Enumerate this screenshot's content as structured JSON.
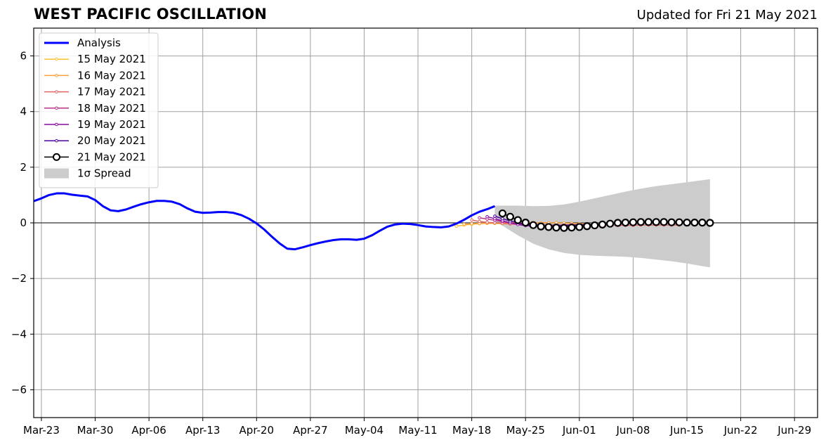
{
  "header": {
    "title": "WEST PACIFIC OSCILLATION",
    "updated": "Updated for Fri 21 May 2021"
  },
  "chart_data": {
    "type": "line",
    "title": "WEST PACIFIC OSCILLATION",
    "subtitle": "Updated for Fri 21 May 2021",
    "xlabel": "",
    "ylabel": "",
    "x_axis_start": "2021-03-22",
    "x_axis_end": "2021-07-02",
    "ylim": [
      -7,
      7
    ],
    "yticks": [
      -6,
      -4,
      -2,
      0,
      2,
      4,
      6
    ],
    "ytick_labels": [
      "−6",
      "−4",
      "−2",
      "0",
      "2",
      "4",
      "6"
    ],
    "xticks": [
      "2021-03-23",
      "2021-03-30",
      "2021-04-06",
      "2021-04-13",
      "2021-04-20",
      "2021-04-27",
      "2021-05-04",
      "2021-05-11",
      "2021-05-18",
      "2021-05-25",
      "2021-06-01",
      "2021-06-08",
      "2021-06-15",
      "2021-06-22",
      "2021-06-29"
    ],
    "xtick_labels": [
      "Mar-23",
      "Mar-30",
      "Apr-06",
      "Apr-13",
      "Apr-20",
      "Apr-27",
      "May-04",
      "May-11",
      "May-18",
      "May-25",
      "Jun-01",
      "Jun-08",
      "Jun-15",
      "Jun-22",
      "Jun-29"
    ],
    "grid": true,
    "legend_position": "top-left",
    "legend": [
      "Analysis",
      "15 May 2021",
      "16 May 2021",
      "17 May 2021",
      "18 May 2021",
      "19 May 2021",
      "20 May 2021",
      "21 May 2021",
      "1σ Spread"
    ],
    "series": [
      {
        "name": "Analysis",
        "color": "#0000ff",
        "kind": "analysis",
        "x": [
          "2021-03-22",
          "2021-03-23",
          "2021-03-24",
          "2021-03-25",
          "2021-03-26",
          "2021-03-27",
          "2021-03-28",
          "2021-03-29",
          "2021-03-30",
          "2021-03-31",
          "2021-04-01",
          "2021-04-02",
          "2021-04-03",
          "2021-04-04",
          "2021-04-05",
          "2021-04-06",
          "2021-04-07",
          "2021-04-08",
          "2021-04-09",
          "2021-04-10",
          "2021-04-11",
          "2021-04-12",
          "2021-04-13",
          "2021-04-14",
          "2021-04-15",
          "2021-04-16",
          "2021-04-17",
          "2021-04-18",
          "2021-04-19",
          "2021-04-20",
          "2021-04-21",
          "2021-04-22",
          "2021-04-23",
          "2021-04-24",
          "2021-04-25",
          "2021-04-26",
          "2021-04-27",
          "2021-04-28",
          "2021-04-29",
          "2021-04-30",
          "2021-05-01",
          "2021-05-02",
          "2021-05-03",
          "2021-05-04",
          "2021-05-05",
          "2021-05-06",
          "2021-05-07",
          "2021-05-08",
          "2021-05-09",
          "2021-05-10",
          "2021-05-11",
          "2021-05-12",
          "2021-05-13",
          "2021-05-14",
          "2021-05-15",
          "2021-05-16",
          "2021-05-17",
          "2021-05-18",
          "2021-05-19",
          "2021-05-20",
          "2021-05-21"
        ],
        "y": [
          0.78,
          0.88,
          1.0,
          1.06,
          1.06,
          1.01,
          0.98,
          0.95,
          0.82,
          0.6,
          0.45,
          0.42,
          0.48,
          0.58,
          0.67,
          0.74,
          0.79,
          0.79,
          0.76,
          0.67,
          0.52,
          0.4,
          0.36,
          0.37,
          0.39,
          0.39,
          0.36,
          0.28,
          0.15,
          -0.02,
          -0.24,
          -0.5,
          -0.74,
          -0.93,
          -0.95,
          -0.88,
          -0.8,
          -0.73,
          -0.67,
          -0.62,
          -0.59,
          -0.59,
          -0.61,
          -0.57,
          -0.45,
          -0.29,
          -0.14,
          -0.06,
          -0.03,
          -0.04,
          -0.08,
          -0.13,
          -0.15,
          -0.16,
          -0.13,
          -0.03,
          0.11,
          0.27,
          0.4,
          0.49,
          0.6
        ]
      },
      {
        "name": "15 May 2021",
        "color": "#fcc02c",
        "kind": "forecast",
        "x": [
          "2021-05-16",
          "2021-05-17",
          "2021-05-18",
          "2021-05-19",
          "2021-05-20",
          "2021-05-21",
          "2021-05-22",
          "2021-05-23",
          "2021-05-24",
          "2021-05-25",
          "2021-05-26",
          "2021-05-27",
          "2021-05-28",
          "2021-05-29",
          "2021-05-30",
          "2021-05-31",
          "2021-06-01"
        ],
        "y": [
          -0.12,
          -0.08,
          -0.05,
          -0.03,
          -0.02,
          -0.02,
          -0.03,
          -0.04,
          -0.05,
          -0.06,
          -0.07,
          -0.08,
          -0.08,
          -0.09,
          -0.09,
          -0.1,
          -0.1
        ]
      },
      {
        "name": "16 May 2021",
        "color": "#fb9f3a",
        "kind": "forecast",
        "x": [
          "2021-05-17",
          "2021-05-18",
          "2021-05-19",
          "2021-05-20",
          "2021-05-21",
          "2021-05-22",
          "2021-05-23",
          "2021-05-24",
          "2021-05-25",
          "2021-05-26",
          "2021-05-27",
          "2021-05-28",
          "2021-05-29",
          "2021-05-30",
          "2021-05-31",
          "2021-06-01",
          "2021-06-02"
        ],
        "y": [
          -0.05,
          -0.03,
          -0.02,
          -0.01,
          -0.01,
          0.0,
          0.0,
          0.0,
          0.01,
          0.01,
          0.0,
          0.0,
          0.0,
          -0.01,
          -0.02,
          -0.03,
          -0.04
        ]
      },
      {
        "name": "17 May 2021",
        "color": "#e16462",
        "kind": "forecast",
        "x": [
          "2021-05-18",
          "2021-05-19",
          "2021-05-20",
          "2021-05-21",
          "2021-05-22",
          "2021-05-23",
          "2021-05-24",
          "2021-05-25",
          "2021-05-26",
          "2021-05-27",
          "2021-05-28",
          "2021-05-29",
          "2021-05-30",
          "2021-05-31",
          "2021-06-01",
          "2021-06-02",
          "2021-06-03",
          "2021-06-04",
          "2021-06-05",
          "2021-06-06",
          "2021-06-07",
          "2021-06-08",
          "2021-06-09",
          "2021-06-10",
          "2021-06-11",
          "2021-06-12",
          "2021-06-13",
          "2021-06-14"
        ],
        "y": [
          0.1,
          0.05,
          0.02,
          0.0,
          -0.02,
          -0.04,
          -0.05,
          -0.06,
          -0.07,
          -0.08,
          -0.09,
          -0.09,
          -0.1,
          -0.1,
          -0.1,
          -0.1,
          -0.1,
          -0.1,
          -0.09,
          -0.09,
          -0.09,
          -0.09,
          -0.08,
          -0.08,
          -0.08,
          -0.08,
          -0.08,
          -0.08
        ]
      },
      {
        "name": "18 May 2021",
        "color": "#b83289",
        "kind": "forecast",
        "x": [
          "2021-05-19",
          "2021-05-20",
          "2021-05-21",
          "2021-05-22",
          "2021-05-23",
          "2021-05-24",
          "2021-05-25",
          "2021-05-26",
          "2021-05-27",
          "2021-05-28",
          "2021-05-29",
          "2021-05-30",
          "2021-05-31",
          "2021-06-01",
          "2021-06-02"
        ],
        "y": [
          0.18,
          0.14,
          0.09,
          0.04,
          0.0,
          -0.03,
          -0.05,
          -0.07,
          -0.08,
          -0.08,
          -0.08,
          -0.08,
          -0.07,
          -0.07,
          -0.06
        ]
      },
      {
        "name": "19 May 2021",
        "color": "#8b0aa5",
        "kind": "forecast",
        "x": [
          "2021-05-20",
          "2021-05-21",
          "2021-05-22",
          "2021-05-23",
          "2021-05-24",
          "2021-05-25",
          "2021-05-26",
          "2021-05-27",
          "2021-05-28",
          "2021-05-29",
          "2021-05-30",
          "2021-05-31",
          "2021-06-01",
          "2021-06-02",
          "2021-06-03"
        ],
        "y": [
          0.22,
          0.15,
          0.07,
          0.0,
          -0.06,
          -0.1,
          -0.12,
          -0.12,
          -0.11,
          -0.1,
          -0.09,
          -0.08,
          -0.07,
          -0.06,
          -0.05
        ]
      },
      {
        "name": "20 May 2021",
        "color": "#4c02a1",
        "kind": "forecast",
        "x": [
          "2021-05-21",
          "2021-05-22",
          "2021-05-23",
          "2021-05-24",
          "2021-05-25",
          "2021-05-26",
          "2021-05-27",
          "2021-05-28",
          "2021-05-29",
          "2021-05-30",
          "2021-05-31",
          "2021-06-01",
          "2021-06-02",
          "2021-06-03",
          "2021-06-04"
        ],
        "y": [
          0.24,
          0.15,
          0.07,
          0.0,
          -0.06,
          -0.1,
          -0.12,
          -0.13,
          -0.12,
          -0.11,
          -0.1,
          -0.08,
          -0.07,
          -0.06,
          -0.05
        ]
      },
      {
        "name": "21 May 2021",
        "color": "#000000",
        "kind": "current",
        "x": [
          "2021-05-22",
          "2021-05-23",
          "2021-05-24",
          "2021-05-25",
          "2021-05-26",
          "2021-05-27",
          "2021-05-28",
          "2021-05-29",
          "2021-05-30",
          "2021-05-31",
          "2021-06-01",
          "2021-06-02",
          "2021-06-03",
          "2021-06-04",
          "2021-06-05",
          "2021-06-06",
          "2021-06-07",
          "2021-06-08",
          "2021-06-09",
          "2021-06-10",
          "2021-06-11",
          "2021-06-12",
          "2021-06-13",
          "2021-06-14",
          "2021-06-15",
          "2021-06-16",
          "2021-06-17",
          "2021-06-18"
        ],
        "y": [
          0.34,
          0.22,
          0.1,
          0.01,
          -0.08,
          -0.13,
          -0.15,
          -0.17,
          -0.18,
          -0.17,
          -0.15,
          -0.12,
          -0.09,
          -0.06,
          -0.03,
          0.0,
          0.01,
          0.02,
          0.03,
          0.03,
          0.03,
          0.03,
          0.02,
          0.02,
          0.01,
          0.01,
          0.01,
          0.0
        ]
      }
    ],
    "spread": {
      "name": "1σ Spread",
      "color": "#cccccc",
      "x": [
        "2021-05-21",
        "2021-05-22",
        "2021-05-24",
        "2021-05-26",
        "2021-05-28",
        "2021-05-30",
        "2021-06-01",
        "2021-06-03",
        "2021-06-05",
        "2021-06-07",
        "2021-06-09",
        "2021-06-11",
        "2021-06-13",
        "2021-06-15",
        "2021-06-18"
      ],
      "upper": [
        0.62,
        0.62,
        0.62,
        0.6,
        0.61,
        0.66,
        0.76,
        0.88,
        1.0,
        1.12,
        1.23,
        1.32,
        1.39,
        1.46,
        1.57
      ],
      "lower": [
        0.05,
        -0.1,
        -0.45,
        -0.75,
        -0.95,
        -1.08,
        -1.15,
        -1.18,
        -1.2,
        -1.22,
        -1.26,
        -1.32,
        -1.38,
        -1.46,
        -1.6
      ]
    }
  }
}
